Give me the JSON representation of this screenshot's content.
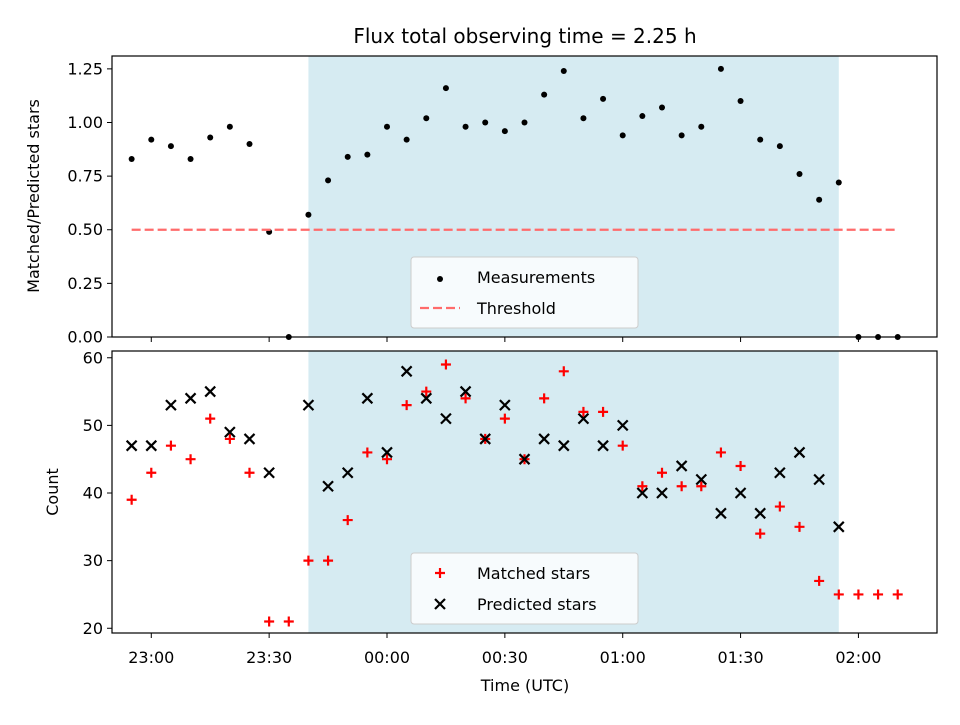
{
  "chart_data": [
    {
      "panel": "top",
      "type": "scatter",
      "title": "Flux total observing time = 2.25 h",
      "xlabel": "",
      "ylabel": "Matched/Predicted stars",
      "xlim": [
        "22:50",
        "02:20"
      ],
      "ylim": [
        0,
        1.31
      ],
      "yticks": [
        "0.00",
        "0.25",
        "0.50",
        "0.75",
        "1.00",
        "1.25"
      ],
      "grid": false,
      "legend_position": "lower-center",
      "shaded_interval": {
        "start": "23:40",
        "end": "01:55",
        "color": "#add8e6"
      },
      "series": [
        {
          "name": "Measurements",
          "marker": "dot",
          "color": "#000000",
          "x": [
            "22:55",
            "23:00",
            "23:05",
            "23:10",
            "23:15",
            "23:20",
            "23:25",
            "23:30",
            "23:35",
            "23:40",
            "23:45",
            "23:50",
            "23:55",
            "00:00",
            "00:05",
            "00:10",
            "00:15",
            "00:20",
            "00:25",
            "00:30",
            "00:35",
            "00:40",
            "00:45",
            "00:50",
            "00:55",
            "01:00",
            "01:05",
            "01:10",
            "01:15",
            "01:20",
            "01:25",
            "01:30",
            "01:35",
            "01:40",
            "01:45",
            "01:50",
            "01:55",
            "02:00",
            "02:05",
            "02:10"
          ],
          "y": [
            0.83,
            0.92,
            0.89,
            0.83,
            0.93,
            0.98,
            0.9,
            0.49,
            0.0,
            0.57,
            0.73,
            0.84,
            0.85,
            0.98,
            0.92,
            1.02,
            1.16,
            0.98,
            1.0,
            0.96,
            1.0,
            1.13,
            1.24,
            1.02,
            1.11,
            0.94,
            1.03,
            1.07,
            0.94,
            0.98,
            1.25,
            1.1,
            0.92,
            0.89,
            0.76,
            0.64,
            0.72,
            0.0,
            0.0,
            0.0
          ]
        },
        {
          "name": "Threshold",
          "type": "line",
          "dash": "dashed",
          "color": "#ff6b6b",
          "x": [
            "22:55",
            "02:10"
          ],
          "y": [
            0.5,
            0.5
          ]
        }
      ]
    },
    {
      "panel": "bottom",
      "type": "scatter",
      "title": "",
      "xlabel": "Time (UTC)",
      "ylabel": "Count",
      "xlim": [
        "22:50",
        "02:20"
      ],
      "xticks": [
        "23:00",
        "23:30",
        "00:00",
        "00:30",
        "01:00",
        "01:30",
        "02:00"
      ],
      "ylim": [
        19.3,
        61
      ],
      "yticks": [
        "20",
        "30",
        "40",
        "50",
        "60"
      ],
      "grid": false,
      "legend_position": "lower-center",
      "shaded_interval": {
        "start": "23:40",
        "end": "01:55",
        "color": "#add8e6"
      },
      "series": [
        {
          "name": "Matched stars",
          "marker": "plus",
          "color": "#ff0000",
          "x": [
            "22:55",
            "23:00",
            "23:05",
            "23:10",
            "23:15",
            "23:20",
            "23:25",
            "23:30",
            "23:35",
            "23:40",
            "23:45",
            "23:50",
            "23:55",
            "00:00",
            "00:05",
            "00:10",
            "00:15",
            "00:20",
            "00:25",
            "00:30",
            "00:35",
            "00:40",
            "00:45",
            "00:50",
            "00:55",
            "01:00",
            "01:05",
            "01:10",
            "01:15",
            "01:20",
            "01:25",
            "01:30",
            "01:35",
            "01:40",
            "01:45",
            "01:50",
            "01:55",
            "02:00",
            "02:05",
            "02:10"
          ],
          "y": [
            39,
            43,
            47,
            45,
            51,
            48,
            43,
            21,
            21,
            30,
            30,
            36,
            46,
            45,
            53,
            55,
            59,
            54,
            48,
            51,
            45,
            54,
            58,
            52,
            52,
            47,
            41,
            43,
            41,
            41,
            46,
            44,
            34,
            38,
            35,
            27,
            25,
            25,
            25,
            25
          ]
        },
        {
          "name": "Predicted stars",
          "marker": "x",
          "color": "#000000",
          "x": [
            "22:55",
            "23:00",
            "23:05",
            "23:10",
            "23:15",
            "23:20",
            "23:25",
            "23:30",
            "23:40",
            "23:45",
            "23:50",
            "23:55",
            "00:00",
            "00:05",
            "00:10",
            "00:15",
            "00:20",
            "00:25",
            "00:30",
            "00:35",
            "00:40",
            "00:45",
            "00:50",
            "00:55",
            "01:00",
            "01:05",
            "01:10",
            "01:15",
            "01:20",
            "01:25",
            "01:30",
            "01:35",
            "01:40",
            "01:45",
            "01:50",
            "01:55"
          ],
          "y": [
            47,
            47,
            53,
            54,
            55,
            49,
            48,
            43,
            53,
            41,
            43,
            54,
            46,
            58,
            54,
            51,
            55,
            48,
            53,
            45,
            48,
            47,
            51,
            47,
            50,
            40,
            40,
            44,
            42,
            37,
            40,
            37,
            43,
            46,
            42,
            35
          ]
        }
      ]
    }
  ]
}
